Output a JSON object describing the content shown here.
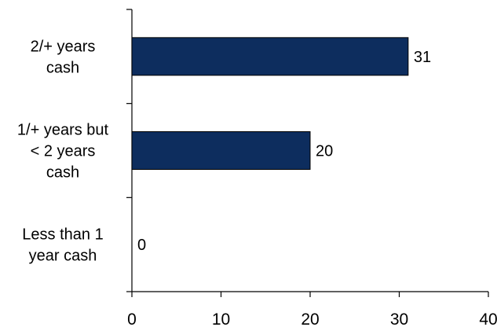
{
  "chart_data": {
    "type": "bar",
    "orientation": "horizontal",
    "categories": [
      [
        "2/+ years",
        "cash"
      ],
      [
        "1/+ years but",
        "< 2 years",
        "cash"
      ],
      [
        "Less than 1",
        "year cash"
      ]
    ],
    "values": [
      31,
      20,
      0
    ],
    "data_labels": [
      "31",
      "20",
      "0"
    ],
    "xlim": [
      0,
      40
    ],
    "xticks": [
      0,
      10,
      20,
      30,
      40
    ],
    "xtick_labels": [
      "0",
      "10",
      "20",
      "30",
      "40"
    ],
    "grid": false,
    "legend": "none",
    "bar_color": "#0d2d5e",
    "bar_edge_color": "#000000",
    "axis_color": "#000000"
  }
}
